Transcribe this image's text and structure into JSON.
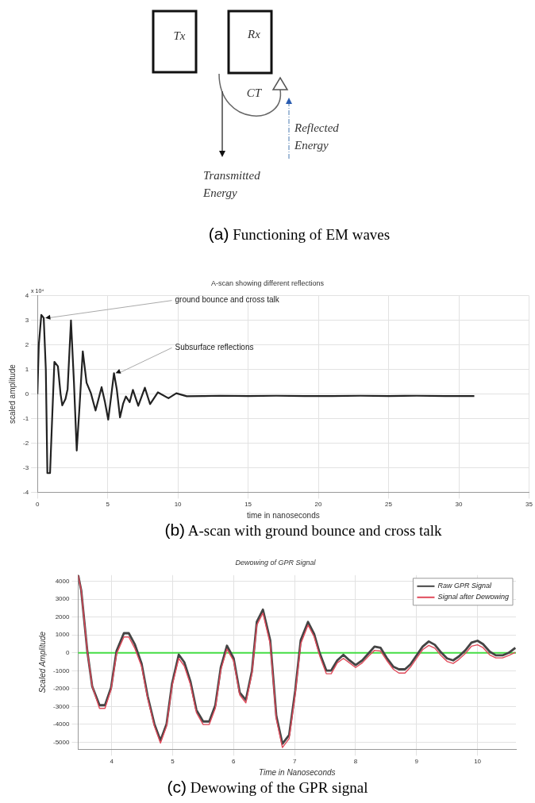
{
  "chart_data": [
    {
      "type": "other",
      "annotations": [
        "Tx",
        "Rx",
        "CT",
        "Reflected Energy",
        "Transmitted Energy",
        "(a) Functioning of EM waves"
      ]
    },
    {
      "type": "line",
      "title": "A-scan showing different reflections",
      "xlabel": "time in nanoseconds",
      "ylabel": "scaled amplitude",
      "xlim": [
        0,
        35
      ],
      "xticks": [
        0,
        5,
        10,
        15,
        20,
        25,
        30,
        35
      ],
      "ylim": [
        -4,
        4
      ],
      "yticks": [
        -4,
        -3,
        -2,
        -1,
        0,
        1,
        2,
        3,
        4
      ],
      "grid": true,
      "x": [
        0,
        0.1,
        0.28,
        0.45,
        0.6,
        0.71,
        0.9,
        1.05,
        1.21,
        1.46,
        1.65,
        1.77,
        2.0,
        2.15,
        2.39,
        2.6,
        2.8,
        3.0,
        3.23,
        3.5,
        3.8,
        4.14,
        4.57,
        4.8,
        5.04,
        5.25,
        5.45,
        5.65,
        5.88,
        6.1,
        6.3,
        6.57,
        6.8,
        7.18,
        7.65,
        8.02,
        8.58,
        9.33,
        9.89,
        10.63,
        11.9,
        13,
        15,
        17,
        19,
        21,
        23,
        25,
        27,
        29,
        31.1
      ],
      "series": [
        {
          "color": "#222222",
          "values": [
            0,
            2.0,
            3.22,
            3.1,
            1.0,
            -3.22,
            -3.22,
            -1.0,
            1.31,
            1.13,
            0.0,
            -0.46,
            -0.2,
            0.2,
            3.0,
            0.5,
            -2.3,
            -0.5,
            1.74,
            0.46,
            0.05,
            -0.67,
            0.28,
            -0.3,
            -1.04,
            -0.1,
            0.85,
            0.2,
            -0.95,
            -0.4,
            -0.1,
            -0.33,
            0.17,
            -0.48,
            0.26,
            -0.41,
            0.07,
            -0.17,
            0.03,
            -0.09,
            -0.08,
            -0.07,
            -0.08,
            -0.07,
            -0.08,
            -0.08,
            -0.07,
            -0.08,
            -0.07,
            -0.08,
            -0.08
          ]
        }
      ],
      "annotations": [
        {
          "text": "ground bounce and cross talk",
          "x": 0.45,
          "y": 3.1
        },
        {
          "text": "Subsurface reflections",
          "x": 5.45,
          "y": 0.85
        },
        "x 10⁴",
        "(b) A-scan with ground bounce and cross talk"
      ]
    },
    {
      "type": "line",
      "title": "Dewowing of GPR Signal",
      "xlabel": "Time in Nanoseconds",
      "ylabel": "Scaled Amplitude",
      "xlim": [
        3.45,
        10.63
      ],
      "xticks": [
        4,
        5,
        6,
        7,
        8,
        9,
        10
      ],
      "ylim": [
        -5400,
        4350
      ],
      "yticks": [
        -5000,
        -4000,
        -3000,
        -2000,
        -1000,
        0,
        1000,
        2000,
        3000,
        4000
      ],
      "grid": true,
      "legend": "top right",
      "x": [
        3.45,
        3.5,
        3.6,
        3.68,
        3.8,
        3.89,
        3.99,
        4.08,
        4.2,
        4.28,
        4.38,
        4.49,
        4.59,
        4.7,
        4.8,
        4.9,
        4.99,
        5.1,
        5.19,
        5.29,
        5.39,
        5.5,
        5.6,
        5.7,
        5.79,
        5.89,
        6.0,
        6.1,
        6.2,
        6.3,
        6.38,
        6.48,
        6.6,
        6.7,
        6.8,
        6.91,
        7.01,
        7.1,
        7.22,
        7.32,
        7.41,
        7.52,
        7.6,
        7.7,
        7.8,
        7.9,
        8.0,
        8.11,
        8.22,
        8.31,
        8.41,
        8.51,
        8.62,
        8.71,
        8.81,
        8.9,
        9.0,
        9.1,
        9.2,
        9.3,
        9.4,
        9.5,
        9.6,
        9.69,
        9.8,
        9.9,
        10.0,
        10.09,
        10.2,
        10.3,
        10.41,
        10.51,
        10.62
      ],
      "series": [
        {
          "name": "Raw GPR Signal",
          "color": "#444444",
          "values": [
            4350,
            3500,
            100,
            -1870,
            -2930,
            -2930,
            -1940,
            110,
            1100,
            1100,
            470,
            -600,
            -2430,
            -3980,
            -4900,
            -3980,
            -1720,
            -100,
            -520,
            -1580,
            -3200,
            -3840,
            -3840,
            -2930,
            -800,
            400,
            -310,
            -2220,
            -2640,
            -1020,
            1740,
            2420,
            700,
            -3530,
            -5090,
            -4600,
            -2120,
            710,
            1730,
            1060,
            0,
            -990,
            -990,
            -420,
            -110,
            -420,
            -680,
            -420,
            0,
            350,
            280,
            -280,
            -780,
            -920,
            -920,
            -640,
            -140,
            350,
            640,
            450,
            30,
            -310,
            -420,
            -210,
            140,
            570,
            680,
            490,
            70,
            -140,
            -140,
            0,
            280
          ]
        },
        {
          "name": "Signal after Dewowing",
          "color": "#e04a5a",
          "values": [
            4350,
            3500,
            100,
            -1870,
            -3110,
            -3110,
            -2050,
            -50,
            890,
            890,
            250,
            -750,
            -2550,
            -4100,
            -5050,
            -4100,
            -1850,
            -310,
            -730,
            -1750,
            -3350,
            -4010,
            -4010,
            -3100,
            -950,
            210,
            -450,
            -2350,
            -2800,
            -1150,
            1550,
            2230,
            500,
            -3700,
            -5300,
            -4800,
            -2300,
            500,
            1560,
            900,
            -150,
            -1170,
            -1170,
            -560,
            -310,
            -560,
            -820,
            -560,
            -150,
            140,
            100,
            -420,
            -920,
            -1130,
            -1130,
            -800,
            -300,
            180,
            420,
            260,
            -140,
            -480,
            -590,
            -380,
            -30,
            370,
            450,
            290,
            -110,
            -280,
            -280,
            -150,
            30
          ]
        }
      ],
      "ref_lines": [
        {
          "axis": "y",
          "value": 0,
          "color": "#44dd44"
        }
      ],
      "annotations": [
        "(c) Dewowing of the GPR signal"
      ]
    }
  ]
}
